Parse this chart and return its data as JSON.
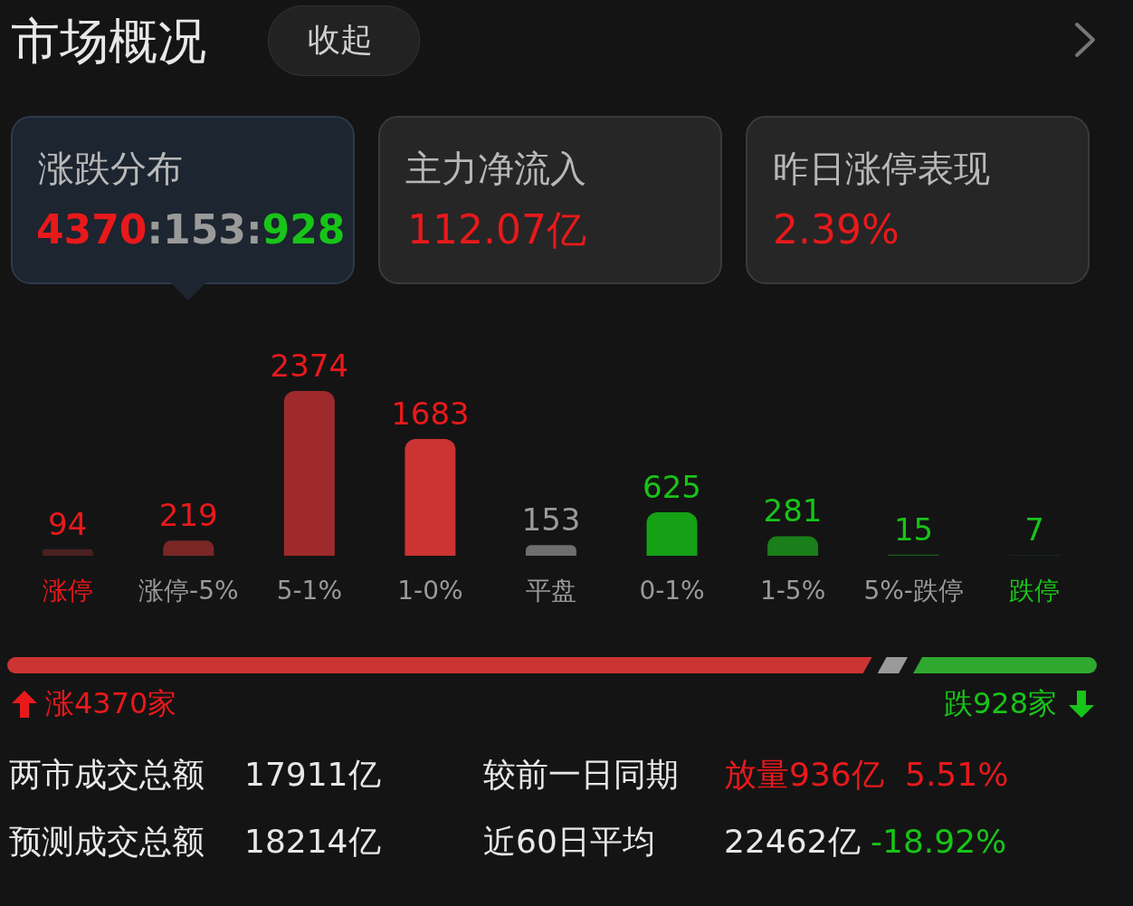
{
  "chart_data": {
    "type": "bar",
    "categories": [
      "涨停",
      "涨停-5%",
      "5-1%",
      "1-0%",
      "平盘",
      "0-1%",
      "1-5%",
      "5%-跌停",
      "跌停"
    ],
    "values": [
      94,
      219,
      2374,
      1683,
      153,
      625,
      281,
      15,
      7
    ],
    "colors": [
      "#4a2020",
      "#7a2626",
      "#9e2a2b",
      "#cc3333",
      "#6e6e6e",
      "#16a016",
      "#1a7e1a",
      "#1b5e1b",
      "#1b3f1b"
    ],
    "data_labels": true,
    "grid": false,
    "legend": false,
    "tick_labels": "x",
    "annotations": [
      "市场概况",
      "收起",
      "涨跌分布",
      "4370:153:928",
      "主力净流入",
      "112.07亿",
      "昨日涨停表现",
      "2.39%",
      "涨4370家",
      "跌928家",
      "两市成交总额",
      "17911亿",
      "较前一日同期",
      "放量936亿",
      "5.51%",
      "预测成交总额",
      "18214亿",
      "近60日平均",
      "22462亿",
      "-18.92%"
    ]
  }
}
